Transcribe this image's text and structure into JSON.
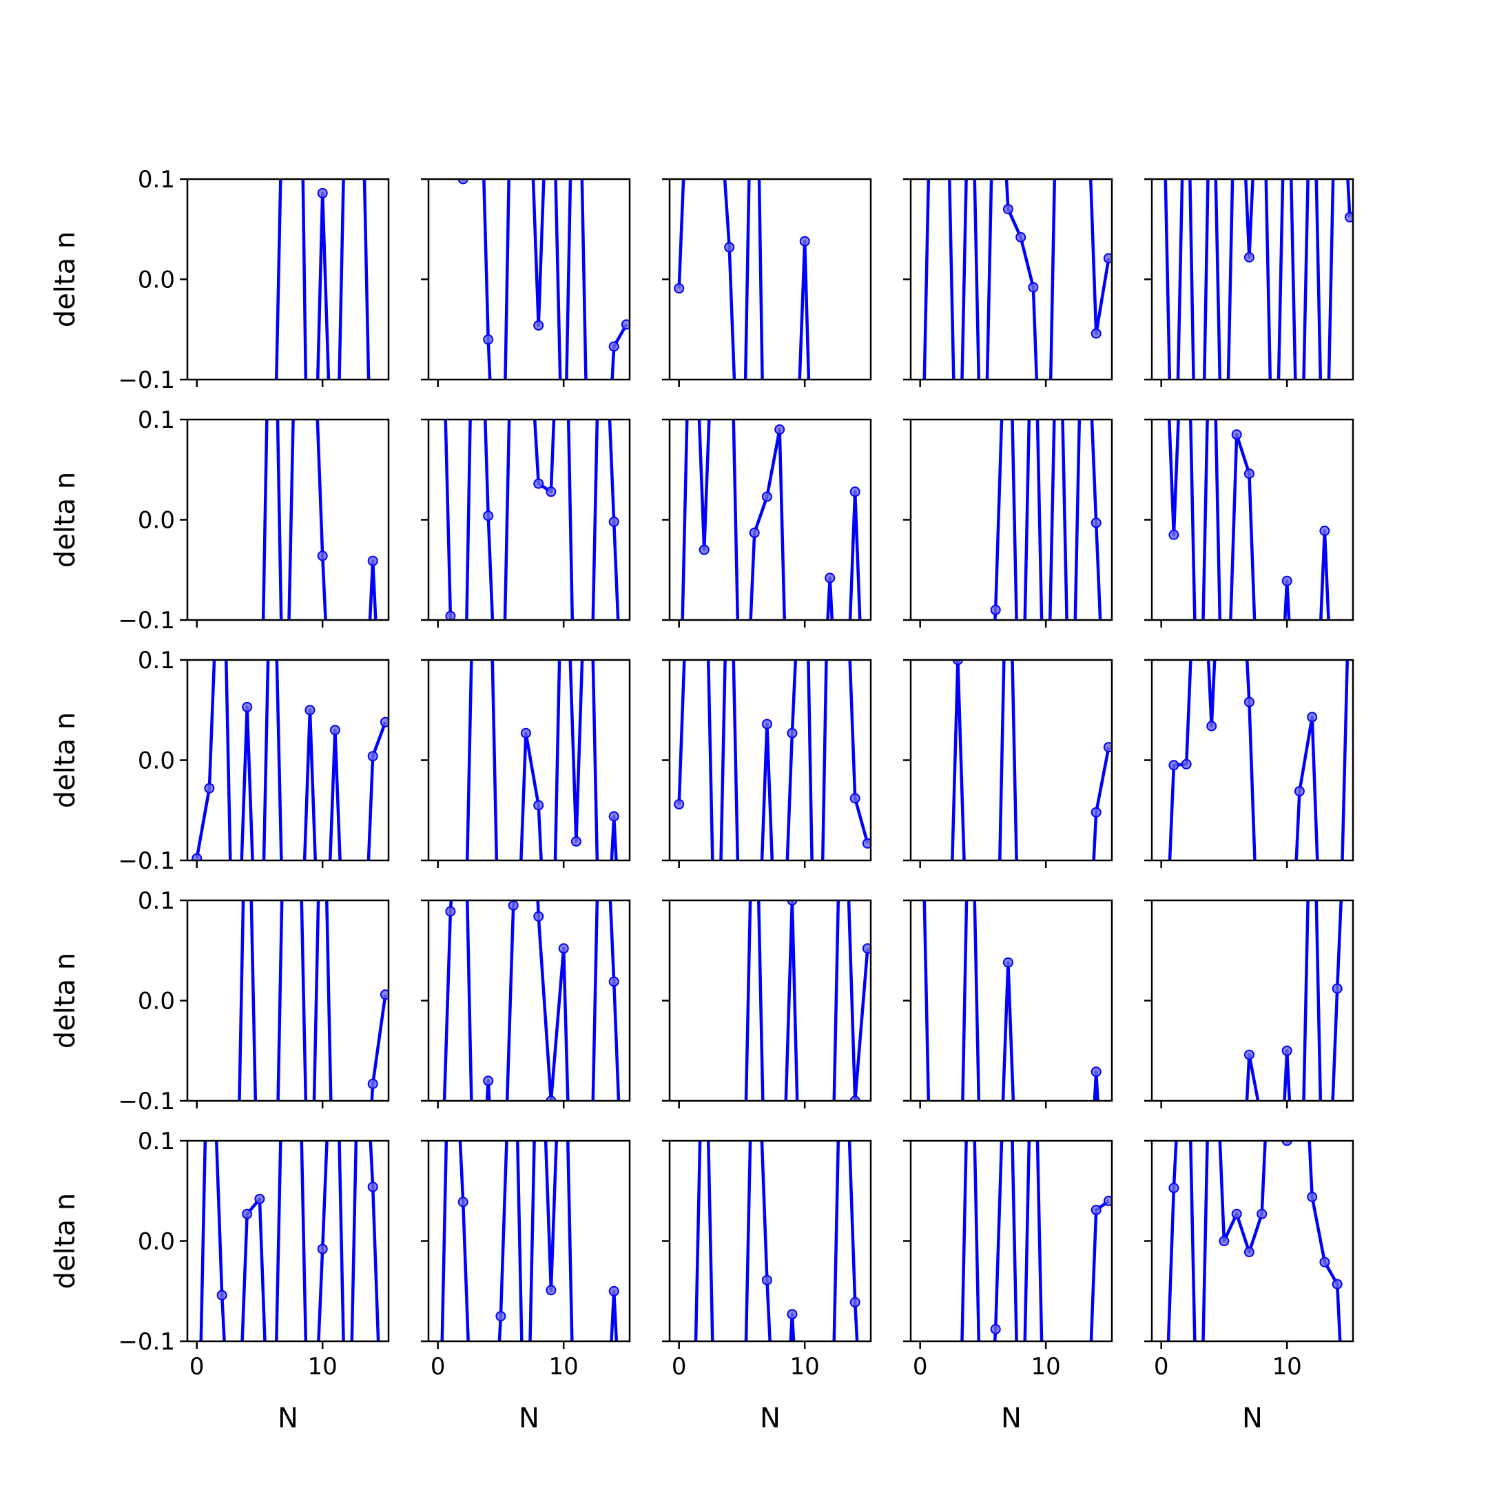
{
  "figure": {
    "rows": 5,
    "cols": 5,
    "line_color": "#0000ff",
    "marker_color": "#6a6ae6",
    "axes_color": "#000000",
    "background": "#ffffff"
  },
  "chart_data": {
    "type": "line",
    "xlabel": "N",
    "ylabel": "delta n",
    "xlim": [
      -0.75,
      15.25
    ],
    "ylim": [
      -0.1,
      0.1
    ],
    "xticks": [
      0,
      10
    ],
    "xtick_labels": [
      "0",
      "10"
    ],
    "yticks": [
      -0.1,
      0.0,
      0.1
    ],
    "ytick_labels": [
      "−0.1",
      "0.0",
      "0.1"
    ],
    "x": [
      0,
      1,
      2,
      3,
      4,
      5,
      6,
      7,
      8,
      9,
      10,
      11,
      12,
      13,
      14,
      15
    ],
    "panels": [
      [
        -0.5,
        -0.4,
        -0.35,
        -0.3,
        -0.3,
        -0.4,
        -0.3,
        0.3,
        0.5,
        -0.4,
        0.086,
        -0.3,
        0.3,
        0.3,
        -0.3,
        -0.3
      ],
      [
        0.3,
        0.3,
        0.1,
        0.4,
        -0.06,
        -0.35,
        0.35,
        0.3,
        -0.046,
        0.3,
        -0.25,
        0.4,
        -0.25,
        -0.3,
        -0.067,
        -0.045
      ],
      [
        -0.009,
        0.3,
        0.3,
        0.22,
        0.032,
        -0.3,
        0.4,
        -0.4,
        -0.3,
        -0.3,
        0.038,
        -0.4,
        -0.3,
        -0.35,
        -0.35,
        -0.4
      ],
      [
        -0.3,
        0.3,
        0.3,
        -0.3,
        0.3,
        -0.3,
        0.3,
        0.07,
        0.042,
        -0.008,
        -0.35,
        0.3,
        0.3,
        0.3,
        -0.054,
        0.021
      ],
      [
        0.3,
        -0.3,
        0.3,
        -0.4,
        0.3,
        -0.3,
        0.3,
        0.022,
        0.3,
        -0.3,
        0.3,
        -0.3,
        0.3,
        -0.3,
        0.3,
        0.062
      ],
      [
        -0.3,
        -0.35,
        -0.4,
        -0.35,
        -0.4,
        -0.3,
        0.4,
        -0.3,
        0.3,
        0.3,
        -0.036,
        -0.3,
        -0.3,
        -0.3,
        -0.041,
        -0.3
      ],
      [
        0.4,
        -0.096,
        -0.3,
        0.4,
        0.004,
        -0.3,
        0.3,
        0.25,
        0.036,
        0.028,
        0.35,
        -0.3,
        -0.3,
        0.3,
        -0.002,
        -0.3
      ],
      [
        -0.25,
        0.3,
        -0.03,
        0.3,
        0.3,
        -0.3,
        -0.013,
        0.023,
        0.09,
        -0.4,
        -0.4,
        -0.3,
        -0.058,
        -0.3,
        0.028,
        -0.3
      ],
      [
        -0.3,
        -0.3,
        -0.3,
        -0.3,
        -0.3,
        -0.3,
        -0.09,
        0.3,
        -0.3,
        0.3,
        -0.3,
        0.3,
        -0.3,
        0.3,
        -0.003,
        -0.3
      ],
      [
        0.3,
        -0.015,
        0.3,
        -0.3,
        0.3,
        -0.3,
        0.085,
        0.046,
        -0.3,
        -0.3,
        -0.061,
        -0.3,
        -0.3,
        -0.011,
        -0.3,
        -0.3
      ],
      [
        -0.098,
        -0.028,
        0.3,
        -0.3,
        0.053,
        -0.3,
        0.3,
        -0.25,
        -0.3,
        0.05,
        -0.3,
        0.03,
        -0.3,
        -0.3,
        0.004,
        0.038
      ],
      [
        -0.3,
        -0.3,
        -0.3,
        0.3,
        0.3,
        -0.3,
        -0.3,
        0.027,
        -0.045,
        -0.3,
        0.3,
        -0.081,
        0.3,
        -0.3,
        -0.056,
        -0.3
      ],
      [
        -0.044,
        0.3,
        0.3,
        -0.3,
        0.3,
        -0.3,
        -0.3,
        0.036,
        -0.3,
        0.027,
        0.3,
        -0.4,
        0.3,
        0.3,
        -0.038,
        -0.083
      ],
      [
        -0.3,
        -0.3,
        -0.35,
        0.1,
        -0.3,
        -0.35,
        -0.3,
        0.3,
        -0.3,
        -0.3,
        -0.35,
        -0.3,
        -0.35,
        -0.3,
        -0.052,
        0.013
      ],
      [
        -0.3,
        -0.005,
        -0.004,
        0.3,
        0.034,
        0.3,
        0.3,
        0.058,
        -0.3,
        -0.3,
        -0.3,
        -0.031,
        0.043,
        -0.3,
        -0.3,
        0.2
      ],
      [
        -0.3,
        -0.3,
        -0.35,
        -0.35,
        0.3,
        -0.3,
        -0.4,
        0.25,
        0.3,
        -0.3,
        0.3,
        -0.3,
        -0.35,
        -0.3,
        -0.083,
        0.006
      ],
      [
        -0.3,
        0.089,
        0.3,
        -0.3,
        -0.08,
        -0.3,
        0.095,
        0.4,
        0.084,
        -0.1,
        0.052,
        -0.4,
        -0.3,
        0.3,
        0.019,
        -0.3
      ],
      [
        -0.3,
        -0.3,
        -0.3,
        -0.3,
        -0.3,
        -0.3,
        0.3,
        -0.3,
        -0.3,
        0.1,
        -0.4,
        -0.3,
        -0.3,
        0.3,
        -0.1,
        0.052
      ],
      [
        0.3,
        -0.3,
        -0.35,
        -0.35,
        0.3,
        -0.3,
        -0.3,
        0.038,
        -0.3,
        -0.3,
        -0.35,
        -0.3,
        -0.35,
        -0.3,
        -0.071,
        -0.3
      ],
      [
        -0.3,
        -0.3,
        -0.3,
        -0.3,
        -0.3,
        -0.3,
        -0.3,
        -0.054,
        -0.12,
        -0.3,
        -0.05,
        -0.3,
        0.3,
        -0.3,
        0.012,
        0.3
      ],
      [
        -0.3,
        0.3,
        -0.054,
        -0.3,
        0.027,
        0.042,
        -0.3,
        0.3,
        0.3,
        -0.3,
        -0.008,
        0.3,
        -0.3,
        0.3,
        0.054,
        -0.3
      ],
      [
        -0.3,
        0.3,
        0.039,
        -0.3,
        -0.3,
        -0.075,
        0.3,
        -0.3,
        0.3,
        -0.049,
        0.3,
        -0.3,
        -0.3,
        -0.3,
        -0.05,
        -0.3
      ],
      [
        -0.3,
        -0.3,
        0.3,
        -0.3,
        -0.3,
        -0.3,
        0.3,
        -0.039,
        -0.3,
        -0.073,
        -0.3,
        -0.3,
        -0.3,
        0.3,
        -0.061,
        -0.3
      ],
      [
        -0.3,
        -0.3,
        -0.3,
        -0.3,
        0.3,
        -0.3,
        -0.088,
        0.3,
        -0.3,
        0.3,
        -0.3,
        -0.3,
        -0.3,
        -0.3,
        0.031,
        0.04
      ],
      [
        -0.3,
        0.053,
        0.3,
        -0.3,
        0.3,
        0.0,
        0.027,
        -0.011,
        0.027,
        0.3,
        0.1,
        0.3,
        0.044,
        -0.021,
        -0.043,
        -0.3
      ]
    ]
  }
}
